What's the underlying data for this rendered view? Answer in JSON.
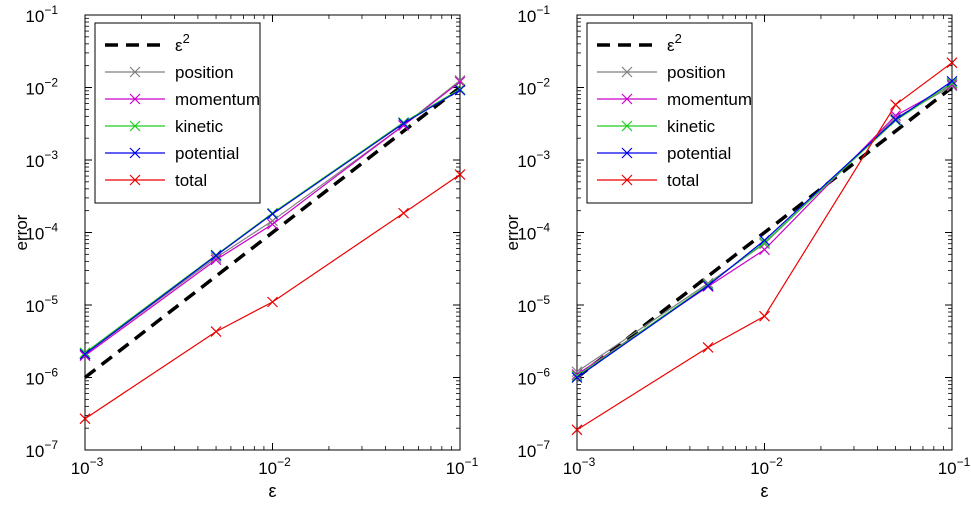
{
  "chart_data": [
    {
      "type": "line",
      "xscale": "log",
      "yscale": "log",
      "xlim": [
        0.001,
        0.1
      ],
      "ylim": [
        1e-07,
        0.1
      ],
      "xlabel": "ε",
      "ylabel": "error",
      "xticks": [
        {
          "value": 0.001,
          "base": "10",
          "exp": "−3"
        },
        {
          "value": 0.01,
          "base": "10",
          "exp": "−2"
        },
        {
          "value": 0.1,
          "base": "10",
          "exp": "−1"
        }
      ],
      "yticks": [
        {
          "value": 1e-07,
          "base": "10",
          "exp": "−7"
        },
        {
          "value": 1e-06,
          "base": "10",
          "exp": "−6"
        },
        {
          "value": 1e-05,
          "base": "10",
          "exp": "−5"
        },
        {
          "value": 0.0001,
          "base": "10",
          "exp": "−4"
        },
        {
          "value": 0.001,
          "base": "10",
          "exp": "−3"
        },
        {
          "value": 0.01,
          "base": "10",
          "exp": "−2"
        },
        {
          "value": 0.1,
          "base": "10",
          "exp": "−1"
        }
      ],
      "grid": false,
      "legend_position": "top-left",
      "series": [
        {
          "name": "ε",
          "name_sup": "2",
          "key": "eps2",
          "color": "#000000",
          "style": "dashed",
          "marker": "none",
          "x": [
            0.001,
            0.1
          ],
          "y": [
            1e-06,
            0.01
          ]
        },
        {
          "name": "position",
          "key": "position",
          "color": "#808080",
          "style": "solid",
          "marker": "x",
          "x": [
            0.001,
            0.005,
            0.01,
            0.05,
            0.1
          ],
          "y": [
            2.1e-06,
            4.5e-05,
            0.000145,
            0.003,
            0.0125
          ]
        },
        {
          "name": "momentum",
          "key": "momentum",
          "color": "#cc00cc",
          "style": "solid",
          "marker": "x",
          "x": [
            0.001,
            0.005,
            0.01,
            0.05,
            0.1
          ],
          "y": [
            2e-06,
            4.2e-05,
            0.00013,
            0.003,
            0.012
          ]
        },
        {
          "name": "kinetic",
          "key": "kinetic",
          "color": "#22cc22",
          "style": "solid",
          "marker": "x",
          "x": [
            0.001,
            0.005,
            0.01,
            0.05,
            0.1
          ],
          "y": [
            2.2e-06,
            4.9e-05,
            0.000185,
            0.0033,
            0.0095
          ]
        },
        {
          "name": "potential",
          "key": "potential",
          "color": "#0000ee",
          "style": "solid",
          "marker": "x",
          "x": [
            0.001,
            0.005,
            0.01,
            0.05,
            0.1
          ],
          "y": [
            2.1e-06,
            4.8e-05,
            0.00018,
            0.0032,
            0.0092
          ]
        },
        {
          "name": "total",
          "key": "total",
          "color": "#ee0000",
          "style": "solid",
          "marker": "x",
          "x": [
            0.001,
            0.005,
            0.01,
            0.05,
            0.1
          ],
          "y": [
            2.7e-07,
            4.3e-06,
            1.1e-05,
            0.000185,
            0.00063
          ]
        }
      ]
    },
    {
      "type": "line",
      "xscale": "log",
      "yscale": "log",
      "xlim": [
        0.001,
        0.1
      ],
      "ylim": [
        1e-07,
        0.1
      ],
      "xlabel": "ε",
      "ylabel": "error",
      "xticks": [
        {
          "value": 0.001,
          "base": "10",
          "exp": "−3"
        },
        {
          "value": 0.01,
          "base": "10",
          "exp": "−2"
        },
        {
          "value": 0.1,
          "base": "10",
          "exp": "−1"
        }
      ],
      "yticks": [
        {
          "value": 1e-07,
          "base": "10",
          "exp": "−7"
        },
        {
          "value": 1e-06,
          "base": "10",
          "exp": "−6"
        },
        {
          "value": 1e-05,
          "base": "10",
          "exp": "−5"
        },
        {
          "value": 0.0001,
          "base": "10",
          "exp": "−4"
        },
        {
          "value": 0.001,
          "base": "10",
          "exp": "−3"
        },
        {
          "value": 0.01,
          "base": "10",
          "exp": "−2"
        },
        {
          "value": 0.1,
          "base": "10",
          "exp": "−1"
        }
      ],
      "grid": false,
      "legend_position": "top-left",
      "series": [
        {
          "name": "ε",
          "name_sup": "2",
          "key": "eps2",
          "color": "#000000",
          "style": "dashed",
          "marker": "none",
          "x": [
            0.001,
            0.1
          ],
          "y": [
            1e-06,
            0.01
          ]
        },
        {
          "name": "position",
          "key": "position",
          "color": "#808080",
          "style": "solid",
          "marker": "x",
          "x": [
            0.001,
            0.005,
            0.01,
            0.05,
            0.1
          ],
          "y": [
            1.2e-06,
            2e-05,
            7e-05,
            0.0038,
            0.0105
          ]
        },
        {
          "name": "momentum",
          "key": "momentum",
          "color": "#cc00cc",
          "style": "solid",
          "marker": "x",
          "x": [
            0.001,
            0.005,
            0.01,
            0.05,
            0.1
          ],
          "y": [
            1.1e-06,
            1.8e-05,
            5.8e-05,
            0.0041,
            0.011
          ]
        },
        {
          "name": "kinetic",
          "key": "kinetic",
          "color": "#22cc22",
          "style": "solid",
          "marker": "x",
          "x": [
            0.001,
            0.005,
            0.01,
            0.05,
            0.1
          ],
          "y": [
            1.05e-06,
            1.9e-05,
            7.3e-05,
            0.0035,
            0.0115
          ]
        },
        {
          "name": "potential",
          "key": "potential",
          "color": "#0000ee",
          "style": "solid",
          "marker": "x",
          "x": [
            0.001,
            0.005,
            0.01,
            0.05,
            0.1
          ],
          "y": [
            1e-06,
            1.85e-05,
            7.8e-05,
            0.0036,
            0.0122
          ]
        },
        {
          "name": "total",
          "key": "total",
          "color": "#ee0000",
          "style": "solid",
          "marker": "x",
          "x": [
            0.001,
            0.005,
            0.01,
            0.05,
            0.1
          ],
          "y": [
            1.9e-07,
            2.6e-06,
            7e-06,
            0.0058,
            0.022
          ]
        }
      ]
    }
  ]
}
